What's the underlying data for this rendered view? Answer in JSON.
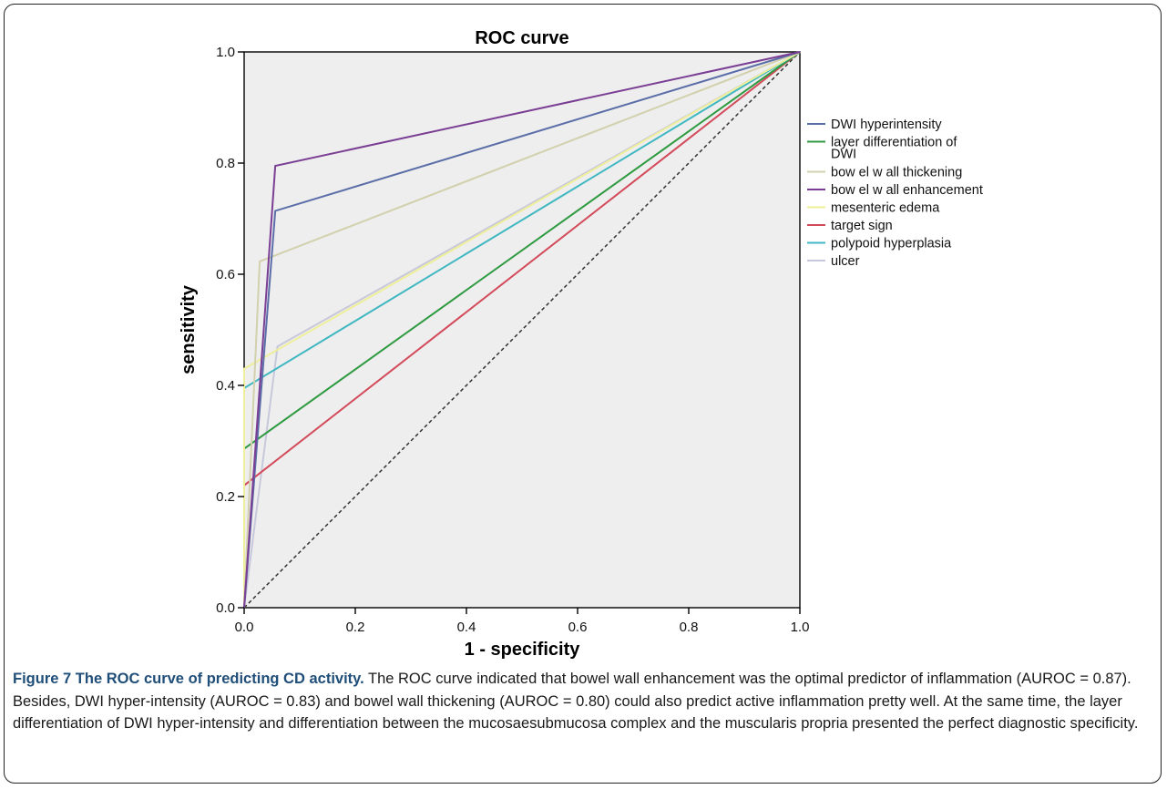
{
  "chart_data": {
    "type": "line",
    "title": "ROC curve",
    "xlabel": "1 - specificity",
    "ylabel": "sensitivity",
    "xlim": [
      0.0,
      1.0
    ],
    "ylim": [
      0.0,
      1.0
    ],
    "xticks": [
      "0.0",
      "0.2",
      "0.4",
      "0.6",
      "0.8",
      "1.0"
    ],
    "yticks": [
      "0.0",
      "0.2",
      "0.4",
      "0.6",
      "0.8",
      "1.0"
    ],
    "grid": false,
    "legend_position": "right",
    "reference_line": {
      "style": "dashed",
      "color": "#333333",
      "x": [
        0,
        1
      ],
      "y": [
        0,
        1
      ]
    },
    "series": [
      {
        "name": "DWI hyperintensity",
        "color": "#5b6ea8",
        "x": [
          0,
          0.056,
          1
        ],
        "y": [
          0,
          0.714,
          1
        ]
      },
      {
        "name": "layer differentiation of DWI",
        "color": "#2f9a41",
        "x": [
          0,
          0,
          1
        ],
        "y": [
          0,
          0.286,
          1
        ]
      },
      {
        "name": "bow el w all thickening",
        "color": "#d2d0ad",
        "x": [
          0,
          0.028,
          1
        ],
        "y": [
          0,
          0.623,
          1
        ]
      },
      {
        "name": "bow el w all enhancement",
        "color": "#7a3e94",
        "x": [
          0,
          0.056,
          1
        ],
        "y": [
          0,
          0.795,
          1
        ]
      },
      {
        "name": "mesenteric edema",
        "color": "#efef9a",
        "x": [
          0,
          0,
          1
        ],
        "y": [
          0,
          0.43,
          1
        ]
      },
      {
        "name": "target sign",
        "color": "#d34a5a",
        "x": [
          0,
          0,
          1
        ],
        "y": [
          0,
          0.22,
          1
        ]
      },
      {
        "name": "polypoid hyperplasia",
        "color": "#3fb7c1",
        "x": [
          0,
          0,
          1
        ],
        "y": [
          0,
          0.395,
          1
        ]
      },
      {
        "name": "ulcer",
        "color": "#c8c8dc",
        "x": [
          0,
          0.06,
          1
        ],
        "y": [
          0,
          0.47,
          1
        ]
      }
    ]
  },
  "caption": {
    "label": "Figure 7",
    "title": "The ROC curve of predicting CD activity.",
    "text": "The ROC curve indicated that bowel wall enhancement was the optimal predictor of inflammation (AUROC = 0.87). Besides, DWI hyper-intensity (AUROC = 0.83) and bowel wall thickening (AUROC = 0.80) could also predict active inflammation pretty well. At the same time, the layer differentiation of DWI hyper-intensity and differentiation between the mucosaesubmucosa complex and the muscularis propria presented the perfect diagnostic specificity."
  }
}
